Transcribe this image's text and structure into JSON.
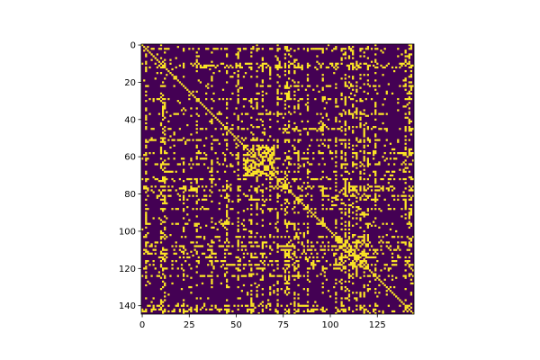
{
  "chart_data": {
    "type": "heatmap",
    "title": "",
    "xlabel": "",
    "ylabel": "",
    "n_rows": 145,
    "n_cols": 145,
    "value_range": [
      0,
      1
    ],
    "colormap": [
      "#440154",
      "#fde725"
    ],
    "x_origin": "left",
    "y_origin": "top",
    "xlim": [
      -0.5,
      144.5
    ],
    "ylim": [
      144.5,
      -0.5
    ],
    "x_ticks": [
      {
        "value": 0,
        "label": "0"
      },
      {
        "value": 25,
        "label": "25"
      },
      {
        "value": 50,
        "label": "50"
      },
      {
        "value": 75,
        "label": "75"
      },
      {
        "value": 100,
        "label": "100"
      },
      {
        "value": 125,
        "label": "125"
      }
    ],
    "y_ticks": [
      {
        "value": 0,
        "label": "0"
      },
      {
        "value": 20,
        "label": "20"
      },
      {
        "value": 40,
        "label": "40"
      },
      {
        "value": 60,
        "label": "60"
      },
      {
        "value": 80,
        "label": "80"
      },
      {
        "value": 100,
        "label": "100"
      },
      {
        "value": 120,
        "label": "120"
      },
      {
        "value": 140,
        "label": "140"
      }
    ],
    "symmetric": true,
    "diagonal_value": 1,
    "hub_indices": [
      2,
      10,
      11,
      12,
      22,
      29,
      37,
      45,
      51,
      58,
      61,
      64,
      68,
      72,
      76,
      77,
      78,
      81,
      83,
      88,
      96,
      103,
      106,
      108,
      110,
      112,
      114,
      116,
      118,
      120,
      124,
      140,
      142,
      143
    ],
    "block_ranges": [
      {
        "start": 10,
        "end": 12
      },
      {
        "start": 29,
        "end": 30
      },
      {
        "start": 54,
        "end": 70
      },
      {
        "start": 76,
        "end": 78
      },
      {
        "start": 103,
        "end": 120
      }
    ],
    "block_density": 0.55,
    "hub_density": 0.6,
    "background_density": 0.035,
    "seed": 7
  }
}
